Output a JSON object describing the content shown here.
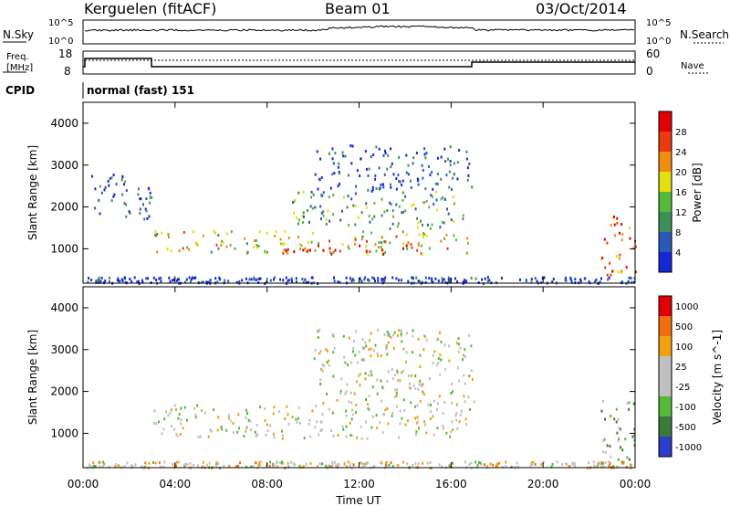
{
  "header": {
    "station": "Kerguelen (fitACF)",
    "beam": "Beam 01",
    "date": "03/Oct/2014"
  },
  "noise_panel": {
    "left_label": "N.Sky",
    "left_ticks": [
      "10^5",
      "10^0"
    ],
    "right_label": "N.Search",
    "right_ticks": [
      "10^5",
      "10^0"
    ]
  },
  "freq_panel": {
    "left_label_line1": "Freq.",
    "left_label_line2": "[MHz]",
    "left_ticks": [
      "18",
      "8"
    ],
    "right_label": "Nave",
    "right_ticks": [
      "60",
      "0"
    ]
  },
  "cpid_panel": {
    "label": "CPID",
    "value": "normal (fast) 151"
  },
  "chart_data": [
    {
      "type": "heatmap",
      "title": "",
      "xlabel": "",
      "ylabel": "Slant Range [km]",
      "xlim": [
        "00:00",
        "24:00"
      ],
      "ylim": [
        180,
        4500
      ],
      "yticks": [
        1000,
        2000,
        3000,
        4000
      ],
      "colorbar_label": "Power [dB]",
      "colorbar_ticks": [
        4,
        8,
        12,
        16,
        20,
        24,
        28
      ],
      "colors": [
        "#1428d6",
        "#2a5ab8",
        "#3f8f5a",
        "#55b93c",
        "#e2e011",
        "#f08c10",
        "#ea3a10",
        "#e00000"
      ],
      "regions": [
        {
          "t": [
            3.0,
            17.0
          ],
          "r": [
            900,
            1450
          ],
          "level": 0.55
        },
        {
          "t": [
            8.5,
            14.5
          ],
          "r": [
            900,
            1150
          ],
          "level": 0.9
        },
        {
          "t": [
            9.0,
            16.5
          ],
          "r": [
            1500,
            2400
          ],
          "level": 0.35
        },
        {
          "t": [
            10.0,
            17.0
          ],
          "r": [
            2400,
            3500
          ],
          "level": 0.15
        },
        {
          "t": [
            0.3,
            3.0
          ],
          "r": [
            1700,
            2800
          ],
          "level": 0.2
        },
        {
          "t": [
            22.5,
            24.0
          ],
          "r": [
            400,
            1800
          ],
          "level": 0.75
        }
      ]
    },
    {
      "type": "heatmap",
      "title": "",
      "xlabel": "Time UT",
      "ylabel": "Slant Range [km]",
      "xlim": [
        "00:00",
        "24:00"
      ],
      "xticks": [
        "00:00",
        "04:00",
        "08:00",
        "12:00",
        "16:00",
        "20:00",
        "00:00"
      ],
      "ylim": [
        180,
        4500
      ],
      "yticks": [
        1000,
        2000,
        3000,
        4000
      ],
      "colorbar_label": "Velocity [m s^-1]",
      "colorbar_ticks": [
        1000,
        500,
        100,
        25,
        -25,
        -100,
        -500,
        -1000
      ],
      "colors": [
        "#2a3ec8",
        "#3c7a3c",
        "#55b93c",
        "#c0c0c0",
        "#c0c0c0",
        "#f0a010",
        "#f07010",
        "#e00000"
      ],
      "regions": [
        {
          "t": [
            3.0,
            17.0
          ],
          "r": [
            900,
            1700
          ],
          "level": 0.5
        },
        {
          "t": [
            10.0,
            17.0
          ],
          "r": [
            1700,
            3500
          ],
          "level": 0.5
        },
        {
          "t": [
            22.5,
            24.0
          ],
          "r": [
            400,
            1800
          ],
          "level": 0.35
        }
      ]
    }
  ]
}
